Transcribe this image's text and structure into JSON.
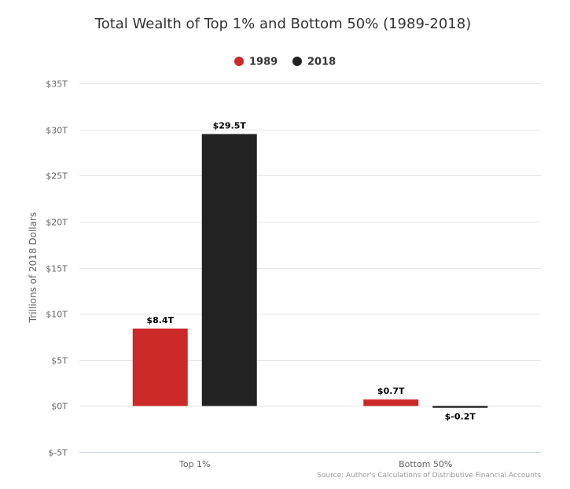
{
  "chart_data": {
    "type": "bar",
    "title": "Total Wealth of Top 1% and Bottom 50% (1989-2018)",
    "ylabel": "Trillions of 2018 Dollars",
    "xlabel": "",
    "categories": [
      "Top 1%",
      "Bottom 50%"
    ],
    "series": [
      {
        "name": "1989",
        "color": "#cc2929",
        "values": [
          8.4,
          0.7
        ],
        "labels": [
          "$8.4T",
          "$0.7T"
        ]
      },
      {
        "name": "2018",
        "color": "#222222",
        "values": [
          29.5,
          -0.2
        ],
        "labels": [
          "$29.5T",
          "$-0.2T"
        ]
      }
    ],
    "ylim": [
      -5,
      35
    ],
    "yticks": [
      {
        "value": 35,
        "label": "$35T"
      },
      {
        "value": 30,
        "label": "$30T"
      },
      {
        "value": 25,
        "label": "$25T"
      },
      {
        "value": 20,
        "label": "$20T"
      },
      {
        "value": 15,
        "label": "$15T"
      },
      {
        "value": 10,
        "label": "$10T"
      },
      {
        "value": 5,
        "label": "$5T"
      },
      {
        "value": 0,
        "label": "$0T"
      },
      {
        "value": -5,
        "label": "$-5T"
      }
    ],
    "grid": true,
    "legend_position": "top-center",
    "source": "Source: Author's Calculations of Distributive Financial Accounts"
  }
}
